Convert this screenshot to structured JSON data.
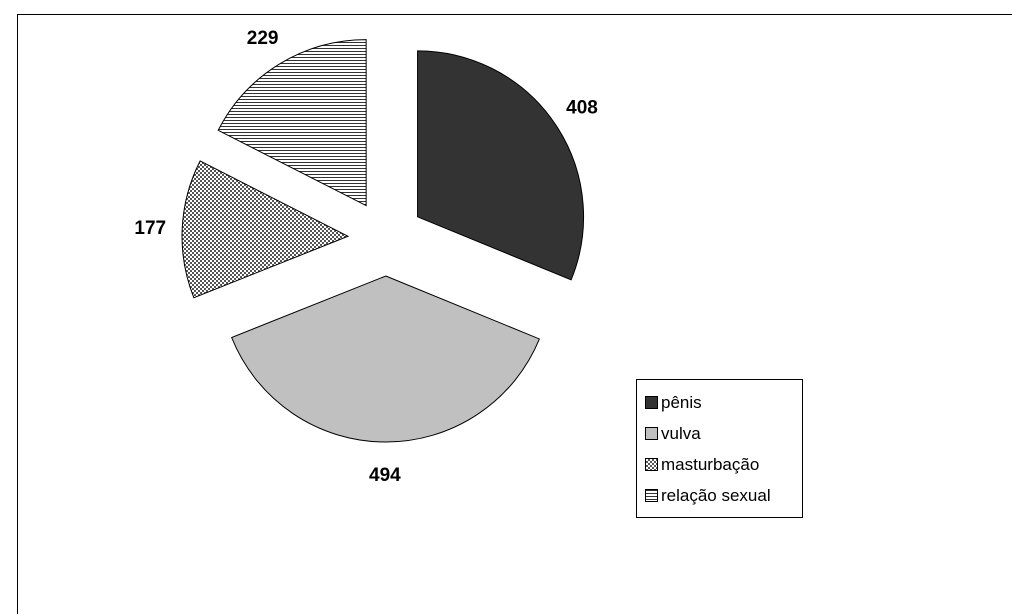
{
  "chart_data": {
    "type": "pie",
    "title": "",
    "slices": [
      {
        "label": "pênis",
        "value": 408,
        "color": "#333333",
        "pattern": "solid"
      },
      {
        "label": "vulva",
        "value": 494,
        "color": "#c0c0c0",
        "pattern": "solid"
      },
      {
        "label": "masturbação",
        "value": 177,
        "color": "#ffffff",
        "pattern": "checker"
      },
      {
        "label": "relação sexual",
        "value": 229,
        "color": "#ffffff",
        "pattern": "horizontal-lines"
      }
    ],
    "exploded": true,
    "legend_position": "right"
  }
}
